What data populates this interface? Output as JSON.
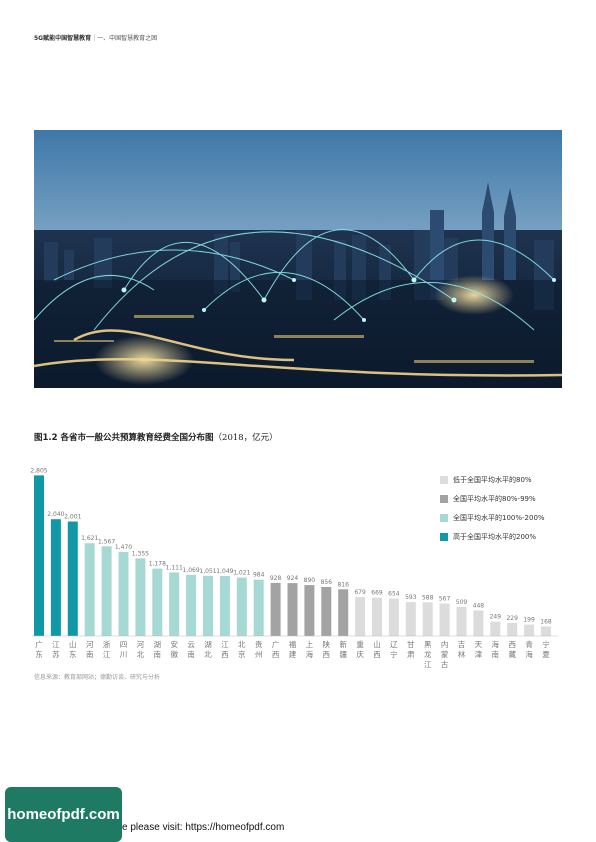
{
  "header": {
    "bold": "5G赋能中国智慧教育",
    "sep": "｜",
    "section": "一、中国智慧教育之困"
  },
  "photo": {
    "icon": "city-network-photo"
  },
  "figure": {
    "title": "图1.2 各省市一般公共预算教育经费全国分布图",
    "subtitle": "（2018，亿元）"
  },
  "chart_data": {
    "type": "bar",
    "categories": [
      "广东",
      "江苏",
      "山东",
      "河南",
      "浙江",
      "四川",
      "河北",
      "湖南",
      "安徽",
      "云南",
      "湖北",
      "江西",
      "北京",
      "贵州",
      "广西",
      "福建",
      "上海",
      "陕西",
      "新疆",
      "重庆",
      "山西",
      "辽宁",
      "甘肃",
      "黑龙江",
      "内蒙古",
      "吉林",
      "天津",
      "海南",
      "西藏",
      "青海",
      "宁夏"
    ],
    "values": [
      2805,
      2040,
      2001,
      1621,
      1567,
      1470,
      1355,
      1178,
      1111,
      1069,
      1051,
      1049,
      1021,
      984,
      928,
      924,
      890,
      856,
      816,
      679,
      669,
      654,
      593,
      588,
      567,
      509,
      448,
      249,
      229,
      199,
      168
    ],
    "value_labels": [
      "2,805",
      "2,040",
      "2,001",
      "1,621",
      "1,567",
      "1,470",
      "1,355",
      "1,178",
      "1,111",
      "1,069",
      "1,051",
      "1,049",
      "1,021",
      "984",
      "928",
      "924",
      "890",
      "856",
      "816",
      "679",
      "669",
      "654",
      "593",
      "588",
      "567",
      "509",
      "448",
      "249",
      "229",
      "199",
      "168"
    ],
    "levels": [
      3,
      3,
      3,
      2,
      2,
      2,
      2,
      2,
      2,
      2,
      2,
      2,
      2,
      2,
      1,
      1,
      1,
      1,
      1,
      0,
      0,
      0,
      0,
      0,
      0,
      0,
      0,
      0,
      0,
      0,
      0
    ],
    "colors": [
      "#dcdcdc",
      "#a3a3a3",
      "#a6d8d4",
      "#1198a6"
    ],
    "value_label_color": "#777777",
    "legend": [
      {
        "label": "低于全国平均水平的80%",
        "color": "#dcdcdc"
      },
      {
        "label": "全国平均水平的80%-99%",
        "color": "#a3a3a3"
      },
      {
        "label": "全国平均水平的100%-200%",
        "color": "#a6d8d4"
      },
      {
        "label": "高于全国平均水平的200%",
        "color": "#1198a6"
      }
    ],
    "legend_placement": "top-right",
    "ylim": [
      0,
      2900
    ],
    "grid": false
  },
  "source": {
    "text": "信息来源：教育部网站；德勤访谈、研究与分析"
  },
  "footer": {
    "logo": "homeofpdf.com",
    "text": "e please visit: https://homeofpdf.com"
  }
}
